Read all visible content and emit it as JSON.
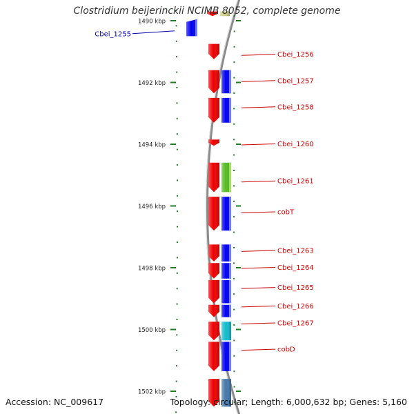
{
  "title": "Clostridium beijerinckii NCIMB 8052, complete genome",
  "footer": {
    "accession": "Accession: NC_009617",
    "summary": "Topology: circular; Length: 6,000,632 bp; Genes: 5,160"
  },
  "colors": {
    "background": "#ffffff",
    "backbone": "#8a8a8a",
    "tick": "#1e7d1e",
    "label_forward": "#cc0000",
    "label_highlight": "#0000aa",
    "gene_red": "#ee0000",
    "gene_blue": "#0000ee",
    "gene_lightblue": "#9ab0e8",
    "gene_green": "#55bb22",
    "gene_cyan": "#11bbcc",
    "gene_steel": "#4477aa",
    "gene_olive": "#cccc88"
  },
  "axis": {
    "unit": "kbp",
    "ticks": [
      {
        "kbp": 1490,
        "label": "1490 kbp"
      },
      {
        "kbp": 1492,
        "label": "1492 kbp"
      },
      {
        "kbp": 1494,
        "label": "1494 kbp"
      },
      {
        "kbp": 1496,
        "label": "1496 kbp"
      },
      {
        "kbp": 1498,
        "label": "1498 kbp"
      },
      {
        "kbp": 1500,
        "label": "1500 kbp"
      },
      {
        "kbp": 1502,
        "label": "1502 kbp"
      }
    ]
  },
  "gene_labels": [
    {
      "text": "Cbei_1255",
      "kbp": 1490.35,
      "side": "left",
      "color": "#0000aa"
    },
    {
      "text": "Cbei_1256",
      "kbp": 1491.1,
      "side": "right",
      "color": "#cc0000"
    },
    {
      "text": "Cbei_1257",
      "kbp": 1491.95,
      "side": "right",
      "color": "#cc0000"
    },
    {
      "text": "Cbei_1258",
      "kbp": 1492.8,
      "side": "right",
      "color": "#cc0000"
    },
    {
      "text": "Cbei_1260",
      "kbp": 1494.0,
      "side": "right",
      "color": "#cc0000"
    },
    {
      "text": "Cbei_1261",
      "kbp": 1495.2,
      "side": "right",
      "color": "#cc0000"
    },
    {
      "text": "cobT",
      "kbp": 1496.2,
      "side": "right",
      "color": "#cc0000"
    },
    {
      "text": "Cbei_1263",
      "kbp": 1497.45,
      "side": "right",
      "color": "#cc0000"
    },
    {
      "text": "Cbei_1264",
      "kbp": 1498.0,
      "side": "right",
      "color": "#cc0000"
    },
    {
      "text": "Cbei_1265",
      "kbp": 1498.65,
      "side": "right",
      "color": "#cc0000"
    },
    {
      "text": "Cbei_1266",
      "kbp": 1499.25,
      "side": "right",
      "color": "#cc0000"
    },
    {
      "text": "Cbei_1267",
      "kbp": 1499.8,
      "side": "right",
      "color": "#cc0000"
    },
    {
      "text": "cobD",
      "kbp": 1500.65,
      "side": "right",
      "color": "#cc0000"
    }
  ],
  "features": [
    {
      "track": "forward",
      "start": 1489.7,
      "end": 1489.85,
      "color": "#ee0000"
    },
    {
      "track": "reverse",
      "start": 1489.7,
      "end": 1489.85,
      "color": "#cccc88"
    },
    {
      "track": "outer-left",
      "start": 1489.95,
      "end": 1490.5,
      "color": "#0000ee"
    },
    {
      "track": "forward",
      "start": 1490.75,
      "end": 1491.25,
      "color": "#ee0000"
    },
    {
      "track": "forward",
      "start": 1491.6,
      "end": 1492.35,
      "color": "#ee0000"
    },
    {
      "track": "reverse",
      "start": 1491.6,
      "end": 1492.35,
      "color": "#0000ee"
    },
    {
      "track": "forward",
      "start": 1492.5,
      "end": 1493.3,
      "color": "#ee0000"
    },
    {
      "track": "reverse",
      "start": 1492.5,
      "end": 1493.3,
      "color": "#0000ee"
    },
    {
      "track": "forward",
      "start": 1493.85,
      "end": 1494.05,
      "color": "#ee0000"
    },
    {
      "track": "forward",
      "start": 1494.6,
      "end": 1495.55,
      "color": "#ee0000"
    },
    {
      "track": "reverse",
      "start": 1494.6,
      "end": 1495.55,
      "color": "#55bb22"
    },
    {
      "track": "forward",
      "start": 1495.7,
      "end": 1496.8,
      "color": "#ee0000"
    },
    {
      "track": "reverse",
      "start": 1495.7,
      "end": 1496.8,
      "color": "#0000ee"
    },
    {
      "track": "forward",
      "start": 1497.25,
      "end": 1497.8,
      "color": "#ee0000"
    },
    {
      "track": "reverse",
      "start": 1497.25,
      "end": 1497.8,
      "color": "#0000ee"
    },
    {
      "track": "forward",
      "start": 1497.85,
      "end": 1498.35,
      "color": "#ee0000"
    },
    {
      "track": "reverse",
      "start": 1497.85,
      "end": 1498.35,
      "color": "#0000ee"
    },
    {
      "track": "forward",
      "start": 1498.4,
      "end": 1499.15,
      "color": "#ee0000"
    },
    {
      "track": "reverse",
      "start": 1498.4,
      "end": 1499.15,
      "color": "#0000ee"
    },
    {
      "track": "forward",
      "start": 1499.2,
      "end": 1499.6,
      "color": "#ee0000"
    },
    {
      "track": "reverse",
      "start": 1499.2,
      "end": 1499.6,
      "color": "#0000ee"
    },
    {
      "track": "forward",
      "start": 1499.75,
      "end": 1500.35,
      "color": "#ee0000"
    },
    {
      "track": "reverse",
      "start": 1499.75,
      "end": 1500.35,
      "color": "#11bbcc"
    },
    {
      "track": "forward",
      "start": 1500.4,
      "end": 1501.35,
      "color": "#ee0000"
    },
    {
      "track": "reverse",
      "start": 1500.4,
      "end": 1501.35,
      "color": "#0000ee"
    },
    {
      "track": "forward",
      "start": 1501.6,
      "end": 1502.5,
      "color": "#ee0000"
    },
    {
      "track": "reverse",
      "start": 1501.6,
      "end": 1502.5,
      "color": "#4477aa"
    }
  ]
}
